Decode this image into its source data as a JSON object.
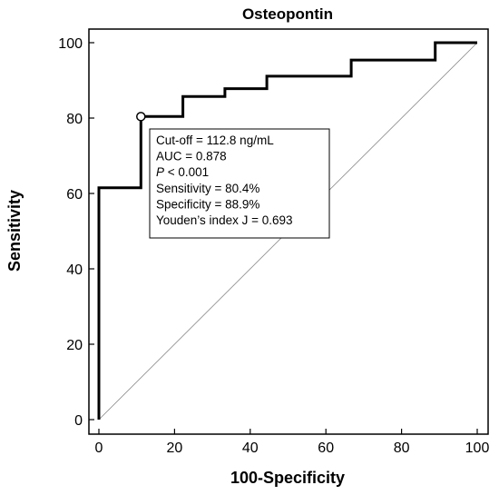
{
  "chart_data": {
    "type": "line",
    "title": "Osteopontin",
    "xlabel": "100-Specificity",
    "ylabel": "Sensitivity",
    "xlim": [
      0,
      100
    ],
    "ylim": [
      0,
      100
    ],
    "xticks": [
      "0",
      "20",
      "40",
      "60",
      "80",
      "100"
    ],
    "yticks": [
      "0",
      "20",
      "40",
      "60",
      "80",
      "100"
    ],
    "series": [
      {
        "name": "",
        "x": [
          0,
          0,
          11.1,
          11.1,
          22.2,
          22.2,
          33.3,
          33.3,
          44.4,
          44.4,
          66.7,
          66.7,
          88.9,
          88.9,
          100
        ],
        "y": [
          0,
          61.5,
          61.5,
          80.4,
          80.4,
          85.7,
          85.7,
          87.8,
          87.8,
          91.1,
          91.1,
          95.4,
          95.4,
          100,
          100
        ]
      }
    ],
    "reference_line": {
      "x": [
        0,
        100
      ],
      "y": [
        0,
        100
      ]
    },
    "cutoff_point": {
      "x": 11.1,
      "y": 80.4
    },
    "annotation_lines": [
      {
        "text": "Cut-off = 112.8 ng/mL"
      },
      {
        "text": "AUC = 0.878"
      },
      {
        "italic": "P",
        "text": " < 0.001"
      },
      {
        "text": "Sensitivity = 80.4%"
      },
      {
        "text": "Specificity = 88.9%"
      },
      {
        "text": "Youden’s index J = 0.693"
      }
    ],
    "grid": false
  }
}
